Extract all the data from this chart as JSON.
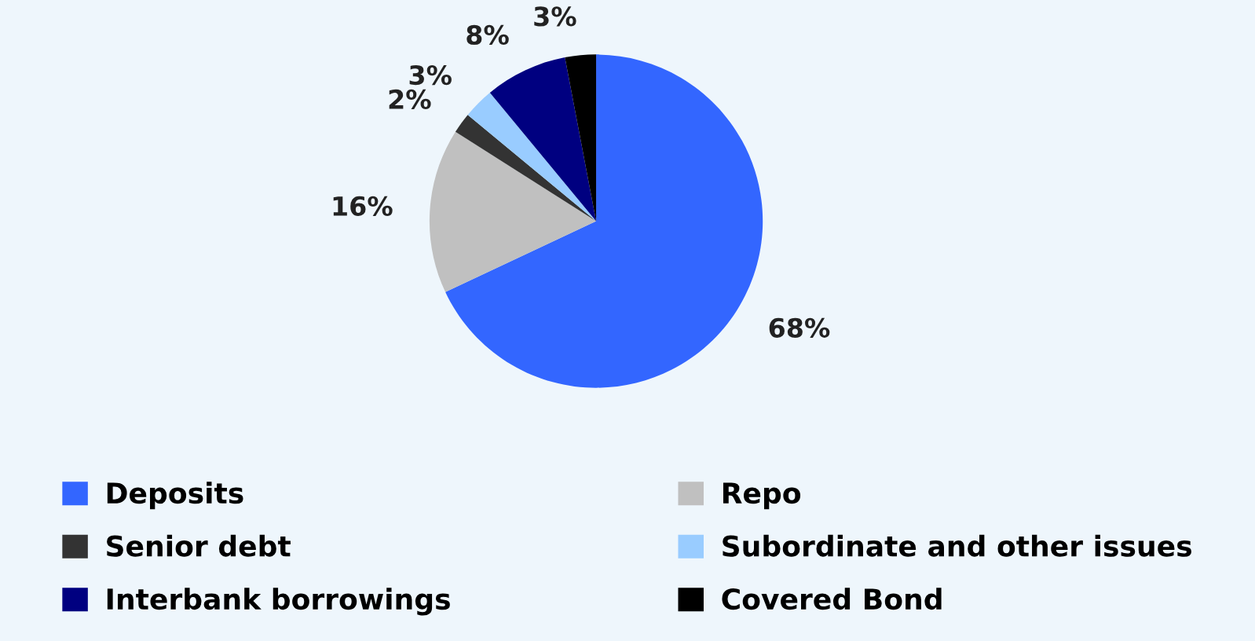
{
  "chart_data": {
    "type": "pie",
    "categories": [
      "Deposits",
      "Repo",
      "Senior debt",
      "Subordinate and other issues",
      "Interbank borrowings",
      "Covered Bond"
    ],
    "values": [
      68,
      16,
      2,
      3,
      8,
      3
    ],
    "value_labels": [
      "68%",
      "16%",
      "2%",
      "3%",
      "8%",
      "3%"
    ],
    "colors": [
      "#3366ff",
      "#c0c0c0",
      "#333333",
      "#99ccff",
      "#000080",
      "#000000"
    ],
    "legend": "bottom"
  }
}
